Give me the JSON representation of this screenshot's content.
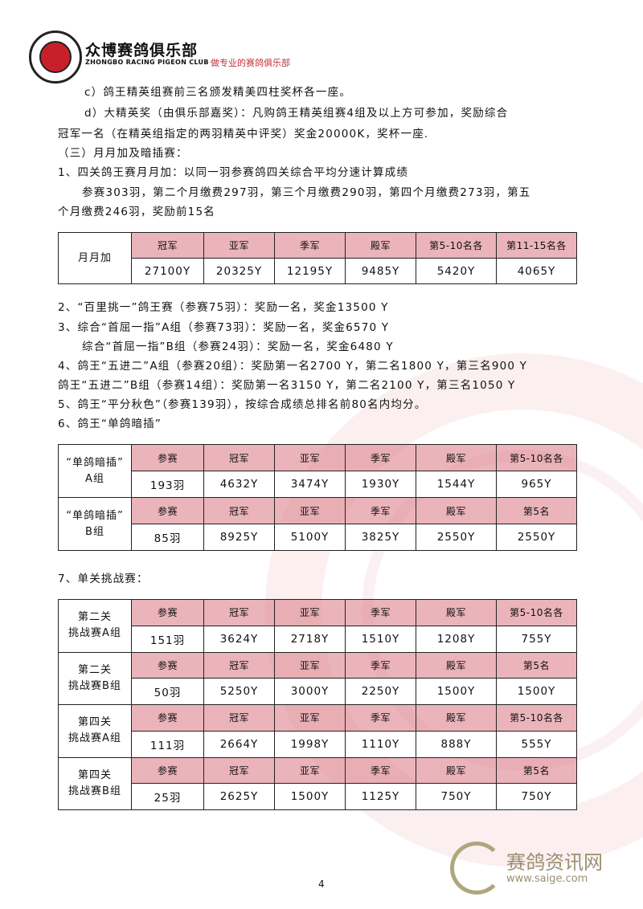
{
  "header": {
    "brand": "众博赛鸽俱乐部",
    "brand_en": "ZHONGBO RACING PIGEON CLUB",
    "slogan": "做专业的赛鸽俱乐部",
    "logo_text": "RACING PIGEON CLUB ZHONGBO"
  },
  "lines": [
    "c）鸽王精英组赛前三名颁发精美四柱奖杯各一座。",
    "d）大精英奖（由俱乐部嘉奖）：凡购鸽王精英组赛4组及以上方可参加，奖励综合",
    "冠军一名（在精英组指定的两羽精英中评奖）奖金20000K，奖杯一座.",
    "（三）月月加及暗插赛：",
    "1、四关鸽王赛月月加：以同一羽参赛鸽四关综合平均分速计算成绩",
    "参赛303羽，第二个月缴费297羽，第三个月缴费290羽，第四个月缴费273羽，第五",
    "个月缴费246羽，奖励前15名"
  ],
  "table1": {
    "label": "月月加",
    "headers": [
      "冠军",
      "亚军",
      "季军",
      "殿军",
      "第5-10名各",
      "第11-15名各"
    ],
    "values": [
      "27100Y",
      "20325Y",
      "12195Y",
      "9485Y",
      "5420Y",
      "4065Y"
    ]
  },
  "lines2": [
    "2、“百里挑一”鸽王赛（参赛75羽）：奖励一名，奖金13500 Y",
    "3、综合“首屈一指”A组（参赛73羽）：奖励一名，奖金6570 Y",
    "综合“首屈一指”B组（参赛24羽）：奖励一名，奖金6480 Y",
    "4、鸽王“五进二”A组（参赛20组）：奖励第一名2700 Y，第二名1800 Y，第三名900 Y",
    "鸽王“五进二”B组（参赛14组）：奖励第一名3150 Y，第二名2100 Y，第三名1050 Y",
    "5、鸽王“平分秋色”（参赛139羽），按综合成绩总排名前80名内均分。",
    "6、鸽王“单鸽暗插”"
  ],
  "table2": [
    {
      "label": [
        "“单鸽暗插”",
        "A组"
      ],
      "headers": [
        "参赛",
        "冠军",
        "亚军",
        "季军",
        "殿军",
        "第5-10名各"
      ],
      "values": [
        "193羽",
        "4632Y",
        "3474Y",
        "1930Y",
        "1544Y",
        "965Y"
      ]
    },
    {
      "label": [
        "“单鸽暗插”",
        "B组"
      ],
      "headers": [
        "参赛",
        "冠军",
        "亚军",
        "季军",
        "殿军",
        "第5名"
      ],
      "values": [
        "85羽",
        "8925Y",
        "5100Y",
        "3825Y",
        "2550Y",
        "2550Y"
      ]
    }
  ],
  "section7": "7、单关挑战赛：",
  "table3": [
    {
      "label": [
        "第二关",
        "挑战赛A组"
      ],
      "headers": [
        "参赛",
        "冠军",
        "亚军",
        "季军",
        "殿军",
        "第5-10名各"
      ],
      "values": [
        "151羽",
        "3624Y",
        "2718Y",
        "1510Y",
        "1208Y",
        "755Y"
      ]
    },
    {
      "label": [
        "第二关",
        "挑战赛B组"
      ],
      "headers": [
        "参赛",
        "冠军",
        "亚军",
        "季军",
        "殿军",
        "第5名"
      ],
      "values": [
        "50羽",
        "5250Y",
        "3000Y",
        "2250Y",
        "1500Y",
        "1500Y"
      ]
    },
    {
      "label": [
        "第四关",
        "挑战赛A组"
      ],
      "headers": [
        "参赛",
        "冠军",
        "亚军",
        "季军",
        "殿军",
        "第5-10名各"
      ],
      "values": [
        "111羽",
        "2664Y",
        "1998Y",
        "1110Y",
        "888Y",
        "555Y"
      ]
    },
    {
      "label": [
        "第四关",
        "挑战赛B组"
      ],
      "headers": [
        "参赛",
        "冠军",
        "亚军",
        "季军",
        "殿军",
        "第5名"
      ],
      "values": [
        "25羽",
        "2625Y",
        "1500Y",
        "1125Y",
        "750Y",
        "750Y"
      ]
    }
  ],
  "page_number": "4",
  "footer_logo": {
    "cn": "赛鸽资讯网",
    "url": "www.saige.com"
  },
  "colors": {
    "header_bg": "#e8a8b0",
    "slogan": "#c0303a",
    "watermark": "#f3d6d9"
  }
}
